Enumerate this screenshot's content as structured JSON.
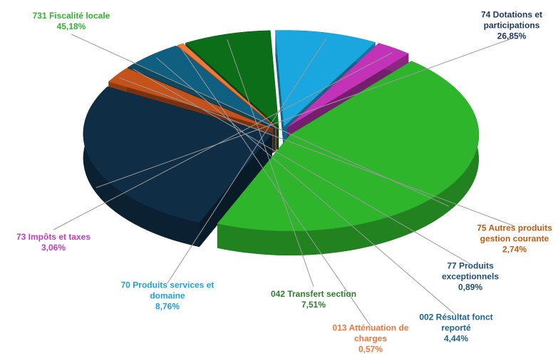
{
  "chart_data": {
    "type": "pie",
    "categories": [
      "731 Fiscalité locale",
      "74 Dotations et participations",
      "75 Autres produits gestion courante",
      "77 Produits exceptionnels",
      "002 Résultat fonct reporté",
      "013 Atténuation de charges",
      "042 Transfert section",
      "70 Produits services et domaine",
      "73 Impôts et taxes"
    ],
    "values": [
      45.18,
      26.85,
      2.74,
      0.89,
      4.44,
      0.57,
      7.51,
      8.76,
      3.06
    ],
    "value_labels": [
      "45,18%",
      "26,85%",
      "2,74%",
      "0,89%",
      "4,44%",
      "0,57%",
      "7,51%",
      "8,76%",
      "3,06%"
    ],
    "colors": [
      "#2fb52c",
      "#0f2d44",
      "#c4521a",
      "#0d4a60",
      "#0f5f80",
      "#f07838",
      "#0d6e1a",
      "#1aa7e0",
      "#c233b8"
    ]
  }
}
